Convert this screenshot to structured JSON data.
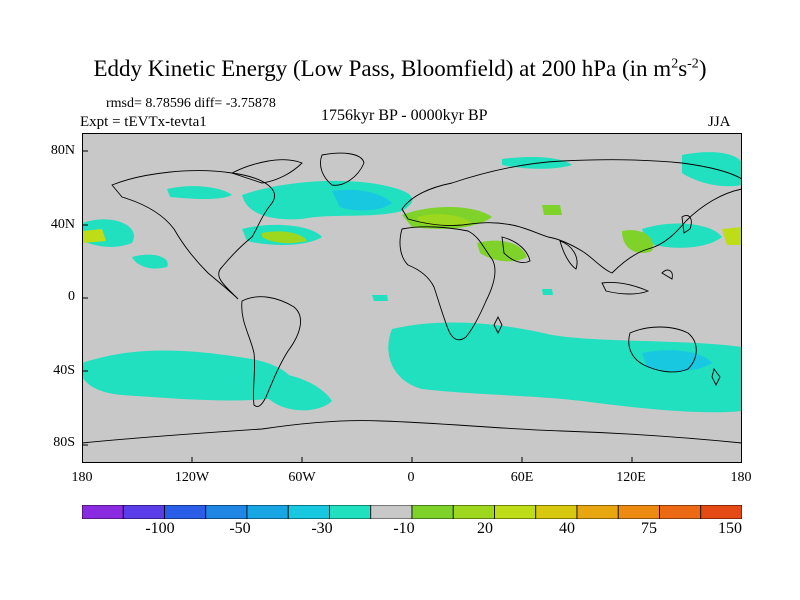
{
  "title": {
    "main": "Eddy Kinetic Energy (Low Pass, Bloomfield) at 200 hPa (in m",
    "sup1": "2",
    "mid": "s",
    "sup2": "-2",
    "end": ")"
  },
  "stats": "rmsd= 8.78596 diff= -3.75878",
  "expt": "Expt = tEVTx-tevta1",
  "period": "1756kyr BP - 0000kyr BP",
  "season": "JJA",
  "map": {
    "type": "filled-contour difference map",
    "projection": "cylindrical equidistant",
    "lon_range": [
      -180,
      180
    ],
    "lat_range": [
      -90,
      90
    ],
    "background_color": "#c8c8c8",
    "coastline_color": "#000000",
    "y_ticks": [
      "80N",
      "40N",
      "0",
      "40S",
      "80S"
    ],
    "x_ticks": [
      "180",
      "120W",
      "60W",
      "0",
      "60E",
      "120E",
      "180"
    ]
  },
  "colorbar": {
    "colors": [
      "#8a2be2",
      "#5a3ce8",
      "#2a5ee8",
      "#1f86e6",
      "#17a5e3",
      "#18c8e0",
      "#20e0c0",
      "#c8c8c8",
      "#7ed22a",
      "#9ed81e",
      "#bedd16",
      "#d8c810",
      "#e8a610",
      "#ec8a12",
      "#ec6a14",
      "#e64a14"
    ],
    "labels": [
      "-100",
      "-50",
      "-30",
      "-10",
      "20",
      "40",
      "75",
      "150"
    ]
  }
}
